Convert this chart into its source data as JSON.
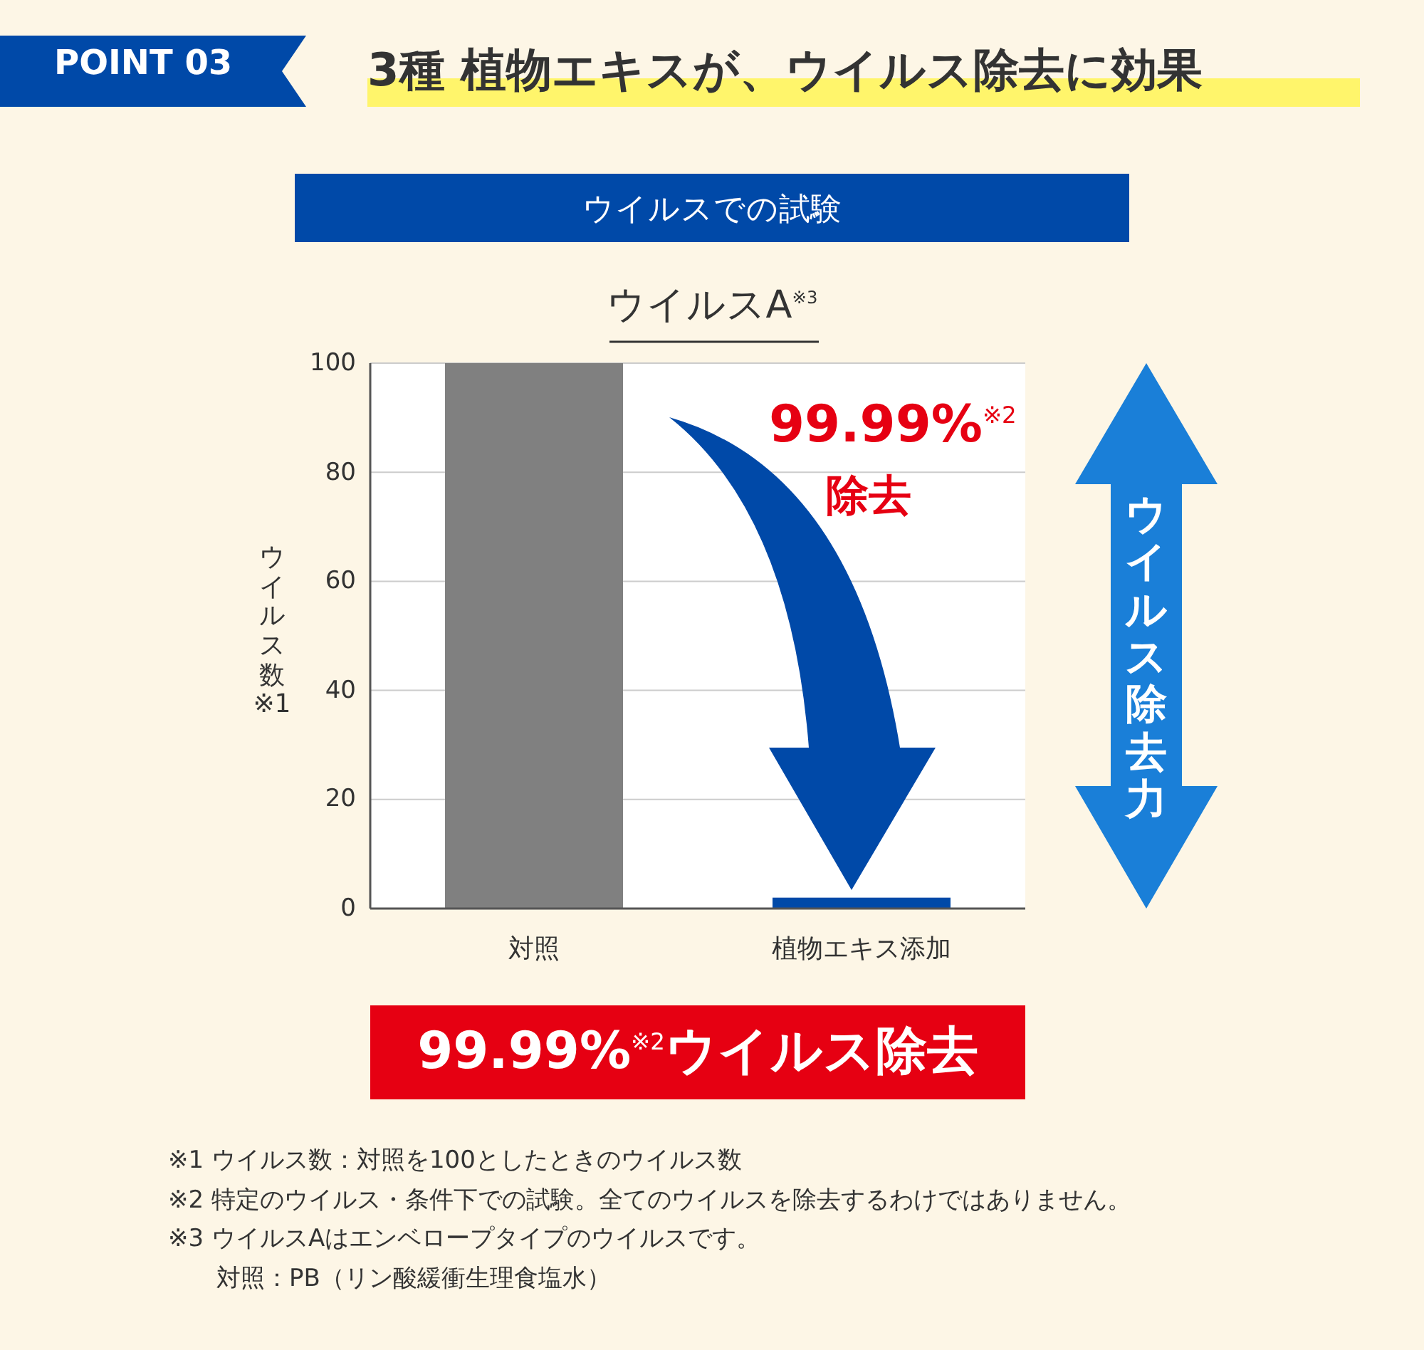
{
  "chart_data": {
    "type": "bar",
    "title": "3種 植物エキスが、ウイルス除去に効果",
    "subtitle": "ウイルスでの試験",
    "categories": [
      "対照",
      "植物エキス添加"
    ],
    "values": [
      100,
      2
    ],
    "colors": [
      "#808080",
      "#0049a8"
    ],
    "ylabel": "ウイルス数※1",
    "ylim": [
      0,
      100
    ],
    "yticks": [
      0,
      20,
      40,
      60,
      80,
      100
    ],
    "grid": "y",
    "annotations": [
      "POINT 03",
      "ウイルスA$^{※3}$",
      "99.99%$^{※2}$",
      "除去",
      "ウイルス除去力",
      "99.99%$^{※2}$ウイルス除去",
      "※1 ウイルス数：対照を100としたときのウイルス数",
      "※2 特定のウイルス・条件下での試験。全てのウイルスを除去するわけではありません。",
      "※3 ウイルスAはエンベロープタイプのウイルスです。",
      "対照：PB（リン酸緩衝生理食塩水）"
    ]
  }
}
